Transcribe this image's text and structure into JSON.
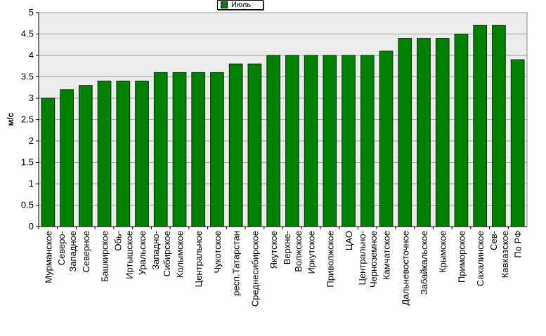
{
  "chart_data": {
    "type": "bar",
    "ylabel": "м/с",
    "ylim": [
      0,
      5
    ],
    "yticks": [
      "0",
      "0.5",
      "1",
      "1.5",
      "2",
      "2.5",
      "3",
      "3.5",
      "4",
      "4.5",
      "5"
    ],
    "legend": {
      "position": "top-center",
      "entries": [
        "Июль"
      ]
    },
    "grid": true,
    "bar_color": "#008000",
    "plot_background": "#ececec",
    "series": [
      {
        "name": "Июль",
        "values": [
          3.0,
          3.2,
          3.3,
          3.4,
          3.4,
          3.4,
          3.6,
          3.6,
          3.6,
          3.6,
          3.8,
          3.8,
          4.0,
          4.0,
          4.0,
          4.0,
          4.0,
          4.0,
          4.1,
          4.4,
          4.4,
          4.4,
          4.5,
          4.7,
          4.7,
          3.9
        ]
      }
    ],
    "categories": [
      "Мурманское",
      "Северо-\nЗападное",
      "Северное",
      "Башкирское",
      "Обь-\nИртышское",
      "Уральское",
      "Западно-\nСибирское",
      "Колымское",
      "Центральное",
      "Чукотское",
      "респ.Татарстан",
      "Среднесибирское",
      "Якутское",
      "Верхне-\nВолжское",
      "Иркутское",
      "Приволжское",
      "ЦАО",
      "Центрально-\nЧерноземное",
      "Камчатское",
      "Дальневосточное",
      "Забайкальское",
      "Крымское",
      "Приморское",
      "Сахалинское",
      "Сев-\nКавказское",
      "По РФ"
    ]
  }
}
